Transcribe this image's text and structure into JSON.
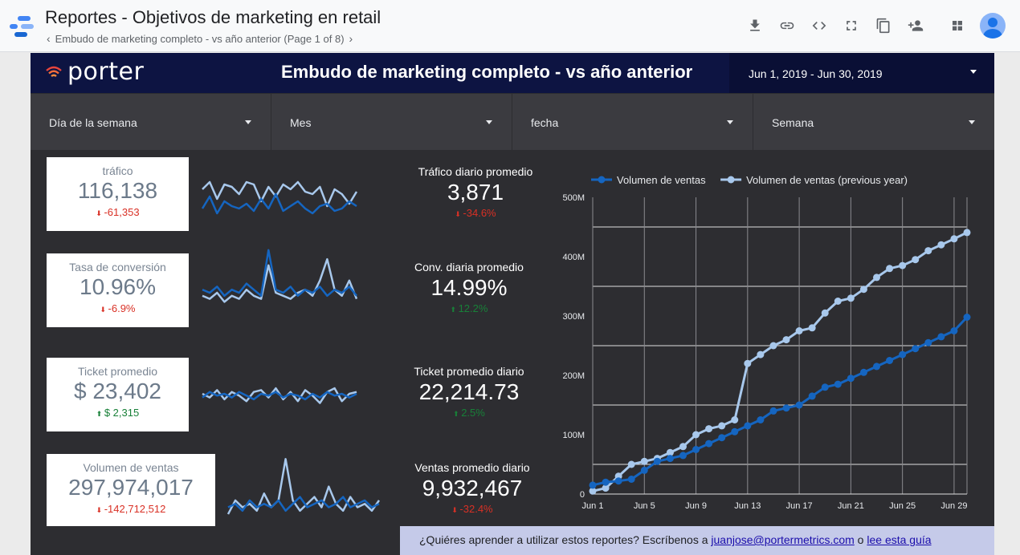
{
  "app": {
    "title": "Reportes - Objetivos de marketing en retail",
    "breadcrumb": "Embudo de marketing completo - vs año anterior (Page 1 of 8)",
    "toolbar_icons": [
      "download-icon",
      "link-icon",
      "embed-code-icon",
      "fullscreen-icon",
      "copy-icon",
      "share-person-icon",
      "apps-grid-icon",
      "account-avatar"
    ]
  },
  "report": {
    "brand": "porter",
    "title": "Embudo de marketing completo - vs año anterior",
    "date_range": "Jun 1, 2019 - Jun 30, 2019",
    "filters": [
      "Día de la semana",
      "Mes",
      "fecha",
      "Semana"
    ]
  },
  "kpis": [
    {
      "title": "tráfico",
      "value": "116,138",
      "delta": "-61,353",
      "dir": "down",
      "spark_cur": [
        0.3,
        0.55,
        0.2,
        0.45,
        0.35,
        0.3,
        0.4,
        0.25,
        0.5,
        0.3,
        0.6,
        0.25,
        0.35,
        0.45,
        0.3,
        0.2,
        0.35,
        0.4,
        0.25,
        0.3,
        0.45,
        0.35
      ],
      "spark_prev": [
        0.7,
        0.85,
        0.5,
        0.8,
        0.75,
        0.6,
        0.85,
        0.8,
        0.45,
        0.75,
        0.55,
        0.8,
        0.7,
        0.85,
        0.65,
        0.6,
        0.75,
        0.35,
        0.7,
        0.6,
        0.4,
        0.65
      ]
    },
    {
      "title": "Tasa de conversión",
      "value": "10.96%",
      "delta": "-6.9%",
      "dir": "down",
      "spark_cur": [
        0.3,
        0.25,
        0.35,
        0.2,
        0.3,
        0.25,
        0.4,
        0.3,
        0.2,
        0.95,
        0.3,
        0.25,
        0.35,
        0.2,
        0.3,
        0.25,
        0.35,
        0.2,
        0.3,
        0.25,
        0.35,
        0.2
      ],
      "spark_prev": [
        0.2,
        0.15,
        0.25,
        0.1,
        0.2,
        0.15,
        0.3,
        0.2,
        0.15,
        0.7,
        0.25,
        0.2,
        0.15,
        0.25,
        0.3,
        0.2,
        0.45,
        0.8,
        0.3,
        0.2,
        0.45,
        0.15
      ]
    },
    {
      "title": "Ticket promedio",
      "value": "$ 23,402",
      "delta": "$ 2,315",
      "dir": "up",
      "spark_cur": [
        0.4,
        0.55,
        0.45,
        0.5,
        0.4,
        0.55,
        0.45,
        0.35,
        0.5,
        0.45,
        0.55,
        0.4,
        0.5,
        0.45,
        0.35,
        0.5,
        0.4,
        0.55,
        0.45,
        0.5,
        0.4,
        0.5
      ],
      "spark_prev": [
        0.5,
        0.4,
        0.6,
        0.35,
        0.55,
        0.45,
        0.3,
        0.55,
        0.6,
        0.4,
        0.65,
        0.35,
        0.55,
        0.3,
        0.6,
        0.45,
        0.25,
        0.55,
        0.65,
        0.3,
        0.5,
        0.55
      ]
    },
    {
      "title": "Volumen de ventas",
      "value": "297,974,017",
      "delta": "-142,712,512",
      "dir": "down",
      "spark_cur": [
        0.25,
        0.3,
        0.2,
        0.35,
        0.25,
        0.3,
        0.25,
        0.35,
        0.2,
        0.3,
        0.4,
        0.25,
        0.3,
        0.35,
        0.25,
        0.3,
        0.4,
        0.25,
        0.3,
        0.35,
        0.25,
        0.3
      ],
      "spark_prev": [
        0.15,
        0.35,
        0.25,
        0.3,
        0.2,
        0.45,
        0.25,
        0.35,
        0.95,
        0.35,
        0.2,
        0.3,
        0.4,
        0.25,
        0.55,
        0.3,
        0.2,
        0.4,
        0.25,
        0.3,
        0.2,
        0.35
      ]
    }
  ],
  "averages": [
    {
      "title": "Tráfico diario promedio",
      "value": "3,871",
      "delta": "-34.6%",
      "dir": "down"
    },
    {
      "title": "Conv. diaria promedio",
      "value": "14.99%",
      "delta": "12.2%",
      "dir": "up"
    },
    {
      "title": "Ticket promedio diario",
      "value": "22,214.73",
      "delta": "2.5%",
      "dir": "up"
    },
    {
      "title": "Ventas promedio diario",
      "value": "9,932,467",
      "delta": "-32.4%",
      "dir": "down"
    }
  ],
  "chart_data": {
    "type": "line",
    "title": "",
    "xlabel": "",
    "ylabel": "",
    "x": [
      "Jun 1",
      "Jun 2",
      "Jun 3",
      "Jun 4",
      "Jun 5",
      "Jun 6",
      "Jun 7",
      "Jun 8",
      "Jun 9",
      "Jun 10",
      "Jun 11",
      "Jun 12",
      "Jun 13",
      "Jun 14",
      "Jun 15",
      "Jun 16",
      "Jun 17",
      "Jun 18",
      "Jun 19",
      "Jun 20",
      "Jun 21",
      "Jun 22",
      "Jun 23",
      "Jun 24",
      "Jun 25",
      "Jun 26",
      "Jun 27",
      "Jun 28",
      "Jun 29",
      "Jun 30"
    ],
    "x_ticks": [
      "Jun 1",
      "Jun 5",
      "Jun 9",
      "Jun 13",
      "Jun 17",
      "Jun 21",
      "Jun 25",
      "Jun 29"
    ],
    "y_ticks": [
      "0",
      "100M",
      "200M",
      "300M",
      "400M",
      "500M"
    ],
    "ylim": [
      0,
      500000000
    ],
    "grid": true,
    "legend": "top",
    "series": [
      {
        "name": "Volumen de ventas",
        "color": "#1565c0",
        "values": [
          15000000,
          20000000,
          22000000,
          25000000,
          40000000,
          55000000,
          60000000,
          65000000,
          75000000,
          85000000,
          95000000,
          105000000,
          115000000,
          125000000,
          140000000,
          145000000,
          150000000,
          165000000,
          180000000,
          185000000,
          195000000,
          205000000,
          215000000,
          225000000,
          235000000,
          245000000,
          255000000,
          265000000,
          275000000,
          297974017
        ]
      },
      {
        "name": "Volumen de ventas (previous year)",
        "color": "#a8c8ec",
        "values": [
          5000000,
          10000000,
          30000000,
          50000000,
          55000000,
          60000000,
          70000000,
          80000000,
          100000000,
          110000000,
          115000000,
          125000000,
          220000000,
          235000000,
          250000000,
          260000000,
          275000000,
          280000000,
          305000000,
          325000000,
          330000000,
          345000000,
          365000000,
          380000000,
          385000000,
          395000000,
          410000000,
          420000000,
          430000000,
          440686529
        ]
      }
    ]
  },
  "banner": {
    "text": "¿Quiéres aprender a utilizar estos reportes? Escríbenos a ",
    "email": "juanjose@portermetrics.com",
    "connector": " o ",
    "link": "lee esta guía"
  }
}
